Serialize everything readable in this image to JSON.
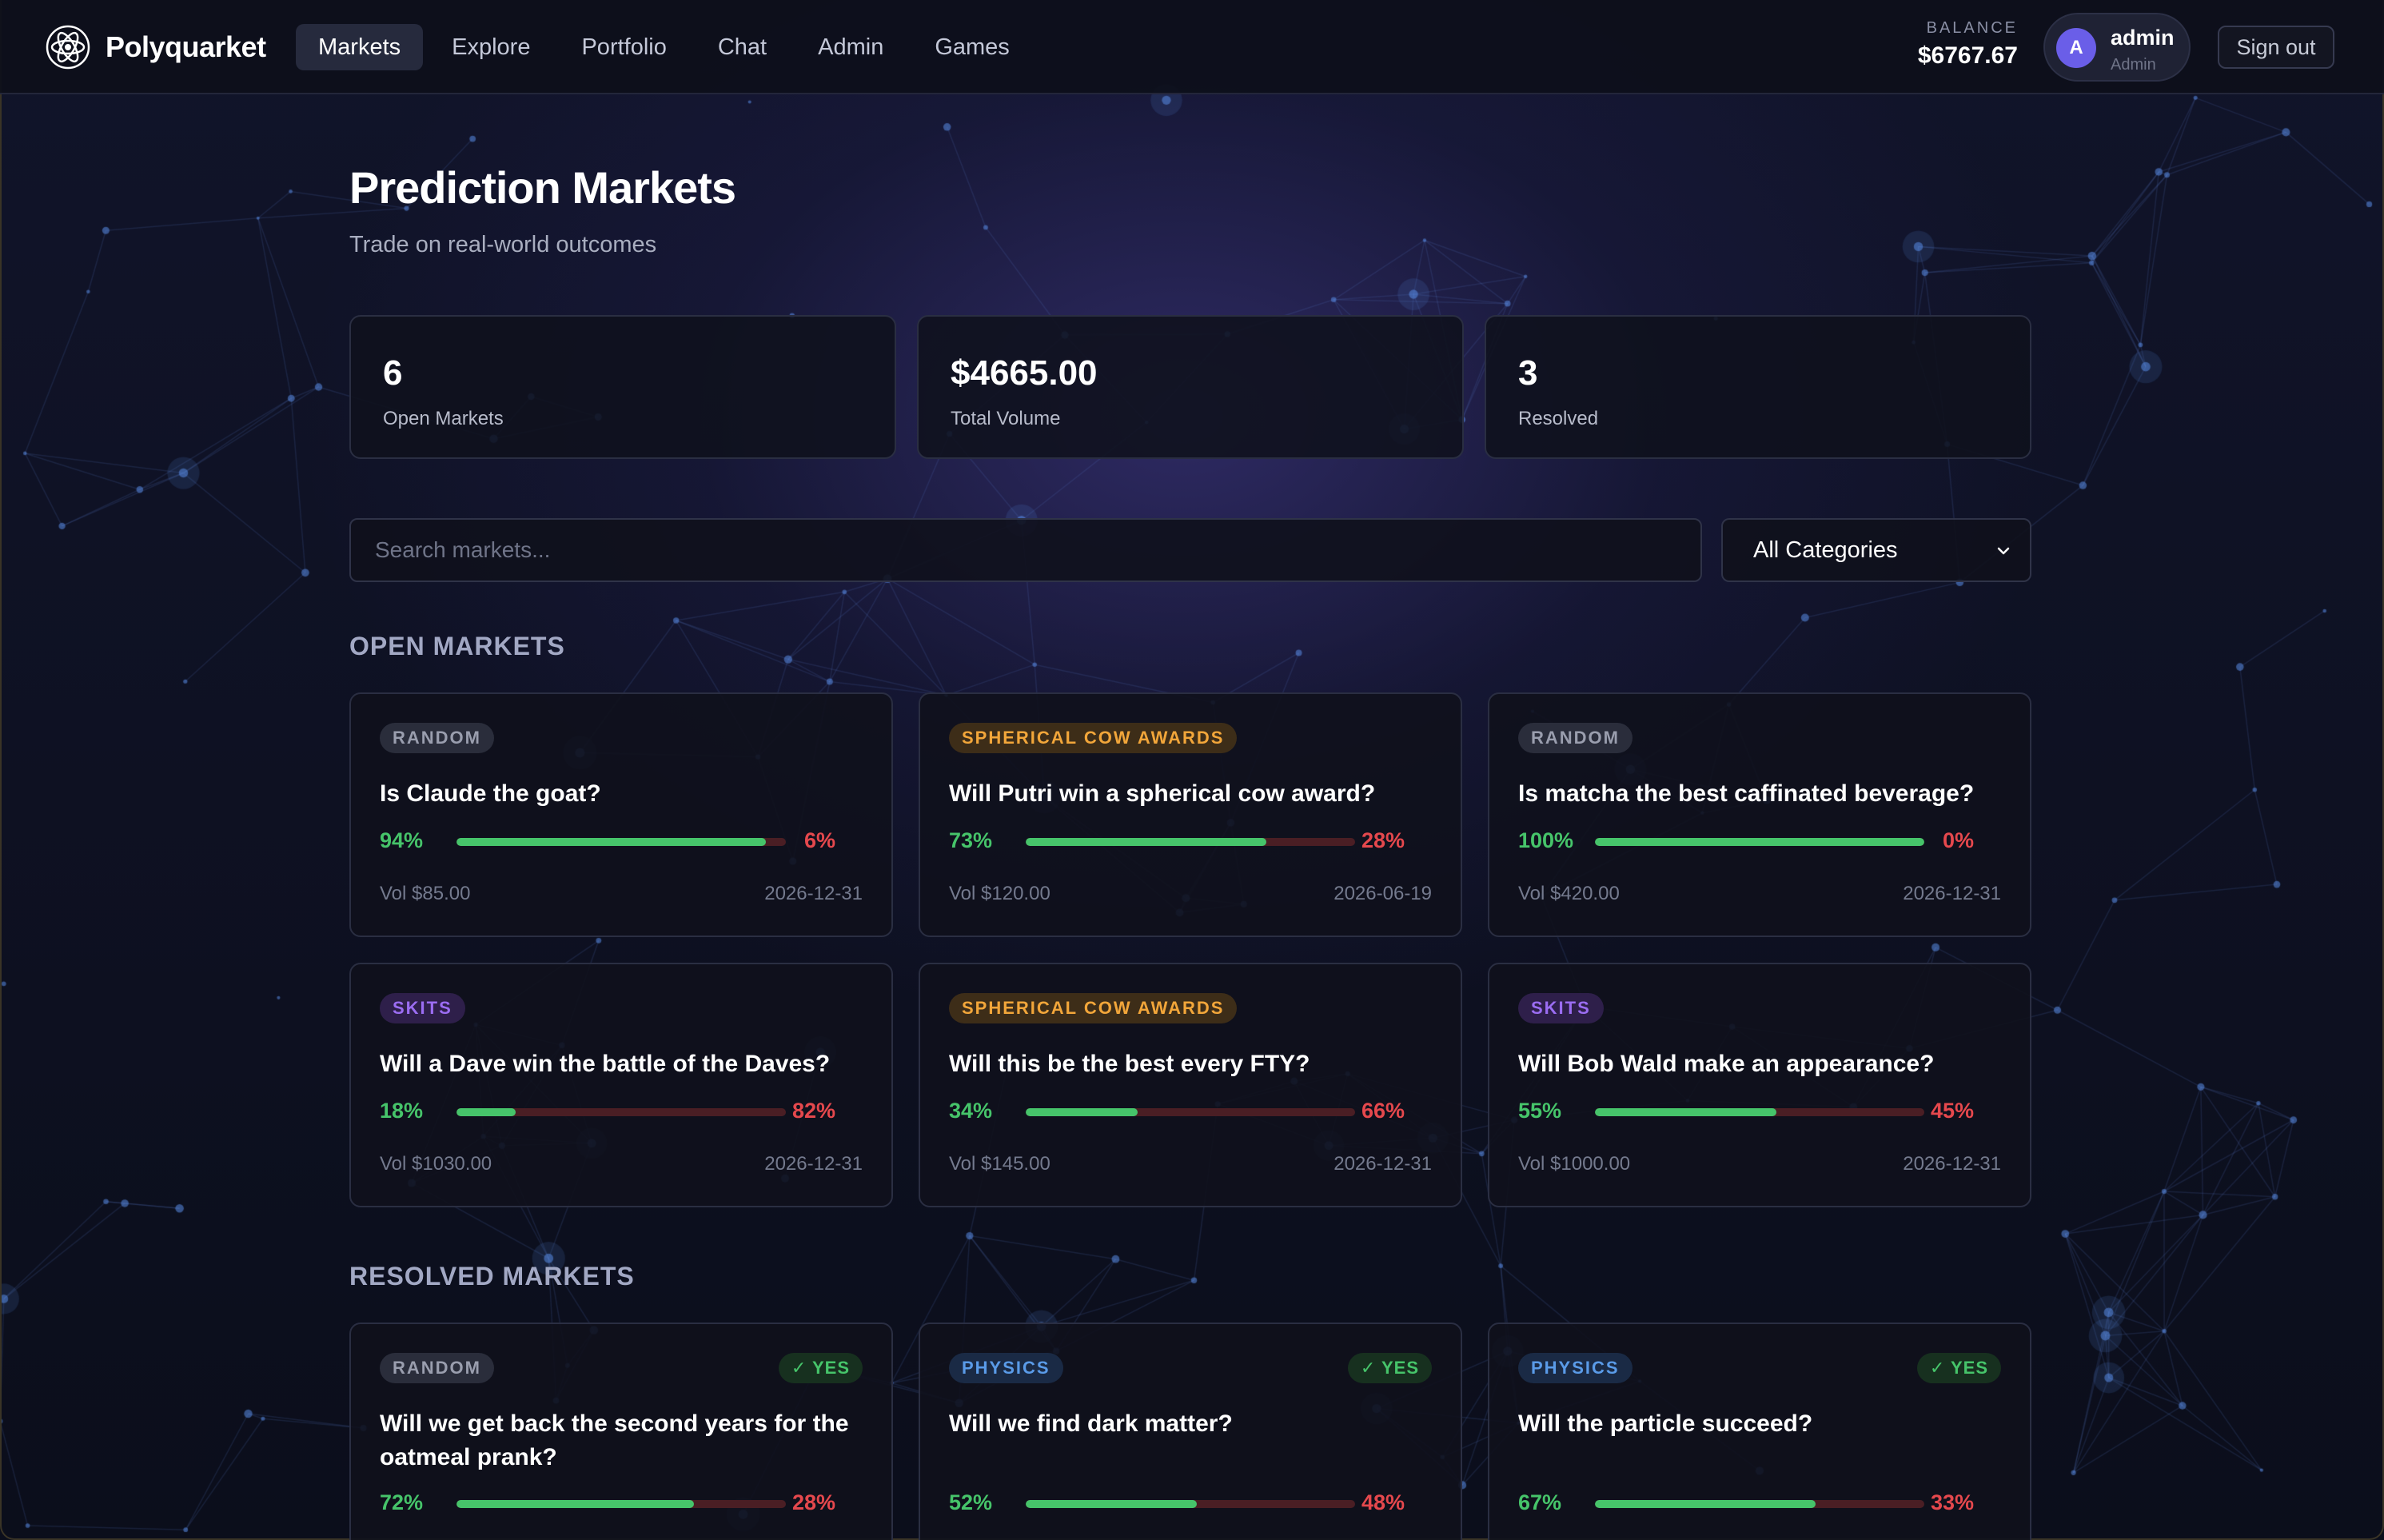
{
  "nav": {
    "brand": "Polyquarket",
    "links": [
      {
        "label": "Markets",
        "active": true
      },
      {
        "label": "Explore"
      },
      {
        "label": "Portfolio"
      },
      {
        "label": "Chat"
      },
      {
        "label": "Admin"
      },
      {
        "label": "Games"
      }
    ],
    "balance_label": "BALANCE",
    "balance_value": "$6767.67",
    "user": {
      "initial": "A",
      "name": "admin",
      "role": "Admin"
    },
    "signout_label": "Sign out"
  },
  "page": {
    "title": "Prediction Markets",
    "subtitle": "Trade on real-world outcomes"
  },
  "stats": [
    {
      "value": "6",
      "label": "Open Markets"
    },
    {
      "value": "$4665.00",
      "label": "Total Volume"
    },
    {
      "value": "3",
      "label": "Resolved"
    }
  ],
  "search": {
    "placeholder": "Search markets..."
  },
  "category_select": {
    "value": "All Categories"
  },
  "open_section": "OPEN MARKETS",
  "resolved_section": "RESOLVED MARKETS",
  "open_markets": [
    {
      "tag": "RANDOM",
      "tag_kind": "random",
      "question": "Is Claude the goat?",
      "yes": "94%",
      "no": "6%",
      "yes_fraction": 0.94,
      "volume": "Vol $85.00",
      "date": "2026-12-31"
    },
    {
      "tag": "SPHERICAL COW AWARDS",
      "tag_kind": "cow",
      "question": "Will Putri win a spherical cow award?",
      "yes": "73%",
      "no": "28%",
      "yes_fraction": 0.73,
      "volume": "Vol $120.00",
      "date": "2026-06-19"
    },
    {
      "tag": "RANDOM",
      "tag_kind": "random",
      "question": "Is matcha the best caffinated beverage?",
      "yes": "100%",
      "no": "0%",
      "yes_fraction": 1.0,
      "volume": "Vol $420.00",
      "date": "2026-12-31"
    },
    {
      "tag": "SKITS",
      "tag_kind": "skits",
      "question": "Will a Dave win the battle of the Daves?",
      "yes": "18%",
      "no": "82%",
      "yes_fraction": 0.18,
      "volume": "Vol $1030.00",
      "date": "2026-12-31"
    },
    {
      "tag": "SPHERICAL COW AWARDS",
      "tag_kind": "cow",
      "question": "Will this be the best every FTY?",
      "yes": "34%",
      "no": "66%",
      "yes_fraction": 0.34,
      "volume": "Vol $145.00",
      "date": "2026-12-31"
    },
    {
      "tag": "SKITS",
      "tag_kind": "skits",
      "question": "Will Bob Wald make an appearance?",
      "yes": "55%",
      "no": "45%",
      "yes_fraction": 0.55,
      "volume": "Vol $1000.00",
      "date": "2026-12-31"
    }
  ],
  "resolved_markets": [
    {
      "tag": "RANDOM",
      "tag_kind": "random",
      "outcome": "✓ YES",
      "question": "Will we get back the second years for the oatmeal prank?",
      "yes": "72%",
      "no": "28%",
      "yes_fraction": 0.72
    },
    {
      "tag": "PHYSICS",
      "tag_kind": "physics",
      "outcome": "✓ YES",
      "question": "Will we find dark matter?",
      "yes": "52%",
      "no": "48%",
      "yes_fraction": 0.52
    },
    {
      "tag": "PHYSICS",
      "tag_kind": "physics",
      "outcome": "✓ YES",
      "question": "Will the particle succeed?",
      "yes": "67%",
      "no": "33%",
      "yes_fraction": 0.67
    }
  ],
  "colors": {
    "accent": "#6a5ee8",
    "yes": "#46c46a",
    "no": "#e5484d",
    "background": "#0c0f1c"
  }
}
